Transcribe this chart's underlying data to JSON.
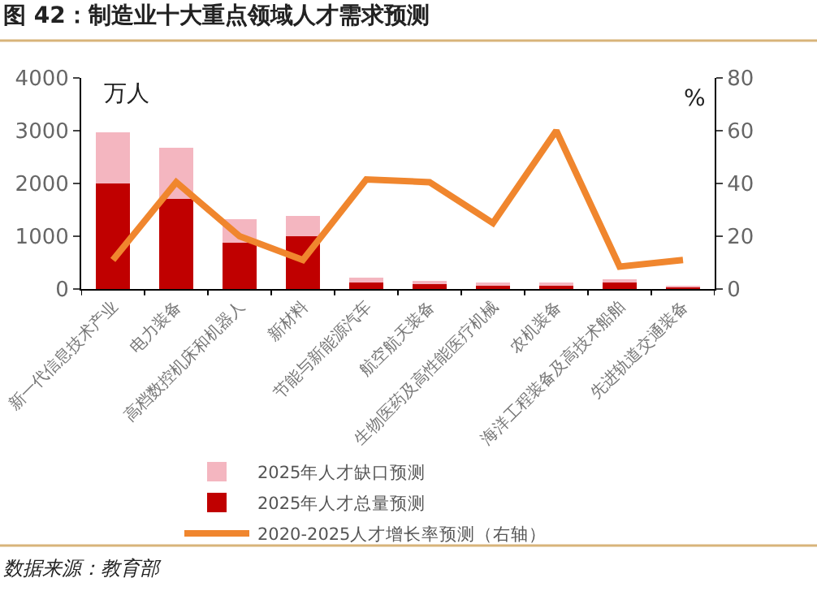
{
  "chart_data": {
    "type": "bar",
    "title": "图 42：制造业十大重点领域人才需求预测",
    "categories": [
      "新一代信息技术产业",
      "电力装备",
      "高档数控机床和机器人",
      "新材料",
      "节能与新能源汽车",
      "航空航天装备",
      "生物医药及高性能医疗机械",
      "农机装备",
      "海洋工程装备及高技术船舶",
      "先进轨道交通装备"
    ],
    "stacked": true,
    "series": [
      {
        "name": "2025年人才总量预测",
        "color": "#c00000",
        "values": [
          2000,
          1710,
          870,
          1000,
          120,
          100,
          80,
          70,
          130,
          40
        ]
      },
      {
        "name": "2025年人才缺口预测",
        "color": "#f4b6c0",
        "values": [
          970,
          960,
          450,
          380,
          100,
          50,
          30,
          40,
          30,
          10
        ]
      },
      {
        "name": "2020-2025人才增长率预测（右轴）",
        "type": "line",
        "axis": "y2",
        "color": "#f0862e",
        "values": [
          11,
          40.5,
          20,
          11,
          41.5,
          40.5,
          25,
          60,
          8.5,
          11
        ]
      }
    ],
    "ylabel": "万人",
    "y2label": "%",
    "ylim": [
      0,
      4000
    ],
    "yticks": [
      0,
      1000,
      2000,
      3000,
      4000
    ],
    "y2lim": [
      0,
      80
    ],
    "y2ticks": [
      0,
      20,
      40,
      60,
      80
    ],
    "legend": "bottom",
    "marker": "none",
    "annotations": [
      "数据来源：教育部"
    ]
  }
}
